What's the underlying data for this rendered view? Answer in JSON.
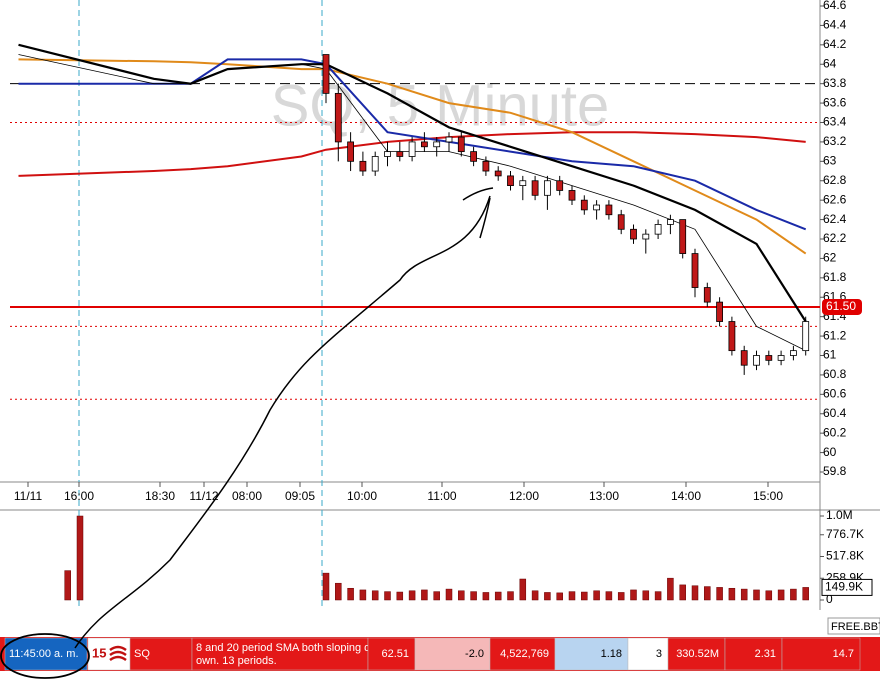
{
  "chart_data": {
    "type": "candlestick",
    "watermark": "SQ, 5 Minute",
    "ylim": [
      59.8,
      64.6
    ],
    "yticks": [
      64.6,
      64.4,
      64.2,
      64,
      63.8,
      63.6,
      63.4,
      63.2,
      63,
      62.8,
      62.6,
      62.4,
      62.2,
      62,
      61.8,
      61.6,
      61.4,
      61.2,
      61,
      60.8,
      60.6,
      60.4,
      60.2,
      60,
      59.8
    ],
    "time_labels": [
      "11/11",
      "16:00",
      "18:30",
      "11/12",
      "08:00",
      "09:05",
      "10:00",
      "11:00",
      "12:00",
      "13:00",
      "14:00",
      "15:00"
    ],
    "candles": [
      [
        64.1,
        64.1,
        63.6,
        63.7
      ],
      [
        63.7,
        63.8,
        63.0,
        63.2
      ],
      [
        63.2,
        63.3,
        62.9,
        63.0
      ],
      [
        63.0,
        63.1,
        62.85,
        62.9
      ],
      [
        62.9,
        63.1,
        62.85,
        63.05
      ],
      [
        63.05,
        63.2,
        62.95,
        63.1
      ],
      [
        63.1,
        63.2,
        63.0,
        63.05
      ],
      [
        63.05,
        63.25,
        63.0,
        63.2
      ],
      [
        63.2,
        63.3,
        63.1,
        63.15
      ],
      [
        63.15,
        63.25,
        63.05,
        63.2
      ],
      [
        63.2,
        63.3,
        63.1,
        63.25
      ],
      [
        63.25,
        63.3,
        63.05,
        63.1
      ],
      [
        63.1,
        63.15,
        62.95,
        63.0
      ],
      [
        63.0,
        63.05,
        62.85,
        62.9
      ],
      [
        62.9,
        62.95,
        62.8,
        62.85
      ],
      [
        62.85,
        62.9,
        62.7,
        62.75
      ],
      [
        62.75,
        62.85,
        62.6,
        62.8
      ],
      [
        62.8,
        62.85,
        62.6,
        62.65
      ],
      [
        62.65,
        62.85,
        62.5,
        62.8
      ],
      [
        62.8,
        62.85,
        62.65,
        62.7
      ],
      [
        62.7,
        62.75,
        62.55,
        62.6
      ],
      [
        62.6,
        62.65,
        62.45,
        62.5
      ],
      [
        62.5,
        62.6,
        62.4,
        62.55
      ],
      [
        62.55,
        62.6,
        62.4,
        62.45
      ],
      [
        62.45,
        62.5,
        62.25,
        62.3
      ],
      [
        62.3,
        62.35,
        62.15,
        62.2
      ],
      [
        62.2,
        62.3,
        62.05,
        62.25
      ],
      [
        62.25,
        62.4,
        62.2,
        62.35
      ],
      [
        62.35,
        62.45,
        62.25,
        62.4
      ],
      [
        62.4,
        62.4,
        62.0,
        62.05
      ],
      [
        62.05,
        62.1,
        61.6,
        61.7
      ],
      [
        61.7,
        61.75,
        61.5,
        61.55
      ],
      [
        61.55,
        61.6,
        61.3,
        61.35
      ],
      [
        61.35,
        61.4,
        61.0,
        61.05
      ],
      [
        61.05,
        61.1,
        60.8,
        60.9
      ],
      [
        60.9,
        61.05,
        60.85,
        61.0
      ],
      [
        61.0,
        61.05,
        60.9,
        60.95
      ],
      [
        60.95,
        61.05,
        60.9,
        61.0
      ],
      [
        61.0,
        61.1,
        60.95,
        61.05
      ],
      [
        61.05,
        61.4,
        61.0,
        61.35
      ]
    ],
    "line_x": [
      -25,
      -14,
      -11,
      -8,
      -2,
      0,
      5,
      10,
      15,
      20,
      25,
      30,
      35,
      39
    ],
    "lines": [
      {
        "color": "#d01010",
        "width": 2,
        "values": [
          62.85,
          62.9,
          62.92,
          62.95,
          63.05,
          63.12,
          63.2,
          63.25,
          63.28,
          63.3,
          63.3,
          63.28,
          63.25,
          63.2
        ]
      },
      {
        "color": "#e08a1a",
        "width": 2,
        "values": [
          64.05,
          64.03,
          64.02,
          64.0,
          63.95,
          63.95,
          63.8,
          63.6,
          63.5,
          63.3,
          63.0,
          62.7,
          62.4,
          62.05
        ]
      },
      {
        "color": "#1a2aa8",
        "width": 2,
        "values": [
          63.8,
          63.8,
          63.8,
          64.05,
          64.05,
          64.0,
          63.3,
          63.2,
          63.1,
          63.0,
          62.95,
          62.8,
          62.5,
          62.3
        ]
      },
      {
        "color": "#000000",
        "width": 2.2,
        "values": [
          64.2,
          63.85,
          63.8,
          63.95,
          64.0,
          64.0,
          63.7,
          63.35,
          63.15,
          62.95,
          62.75,
          62.5,
          62.15,
          61.35
        ]
      },
      {
        "color": "#000000",
        "width": 0.8,
        "values": [
          64.1,
          63.8,
          63.8,
          63.95,
          64.0,
          63.95,
          63.1,
          63.1,
          62.95,
          62.75,
          62.55,
          62.3,
          61.3,
          61.05
        ]
      }
    ],
    "levels": [
      {
        "value": 61.5,
        "style": "solid",
        "color": "#e00000",
        "label": "61.50"
      },
      {
        "value": 63.8,
        "style": "dashed",
        "color": "#000000"
      },
      {
        "value": 63.4,
        "style": "dotted",
        "color": "#e00000"
      },
      {
        "value": 61.3,
        "style": "dotted",
        "color": "#e00000"
      },
      {
        "value": 60.55,
        "style": "dotted",
        "color": "#e00000"
      }
    ],
    "volume": {
      "ylim": [
        0,
        1000000
      ],
      "yticks": [
        {
          "value": 1000000,
          "label": "1.0M"
        },
        {
          "value": 776700,
          "label": "776.7K"
        },
        {
          "value": 517800,
          "label": "517.8K"
        },
        {
          "value": 258900,
          "label": "258.9K"
        },
        0
      ],
      "x": [
        -21,
        -20,
        0,
        1,
        2,
        3,
        4,
        5,
        6,
        7,
        8,
        9,
        10,
        11,
        12,
        13,
        14,
        15,
        16,
        17,
        18,
        19,
        20,
        21,
        22,
        23,
        24,
        25,
        26,
        27,
        28,
        29,
        30,
        31,
        32,
        33,
        34,
        35,
        36,
        37,
        38,
        39
      ],
      "values": [
        350000,
        1000000,
        320000,
        200000,
        140000,
        120000,
        110000,
        100000,
        95000,
        110000,
        120000,
        100000,
        130000,
        110000,
        100000,
        90000,
        95000,
        100000,
        250000,
        110000,
        90000,
        85000,
        100000,
        95000,
        110000,
        100000,
        90000,
        120000,
        110000,
        100000,
        260000,
        180000,
        170000,
        160000,
        150000,
        140000,
        130000,
        120000,
        110000,
        120000,
        130000,
        149900
      ],
      "last_label": {
        "value": 149900,
        "label": "149.9K"
      }
    }
  },
  "status_bar": {
    "feed": "FREE.BBT",
    "time": "11:45:00 a. m.",
    "count": "15",
    "symbol": "SQ",
    "message": "8 and 20 period SMA both sloping down.  13 periods.",
    "cells": [
      "62.51",
      "-2.0",
      "4,522,769",
      "1.18",
      "3",
      "330.52M",
      "2.31",
      "14.7"
    ]
  }
}
